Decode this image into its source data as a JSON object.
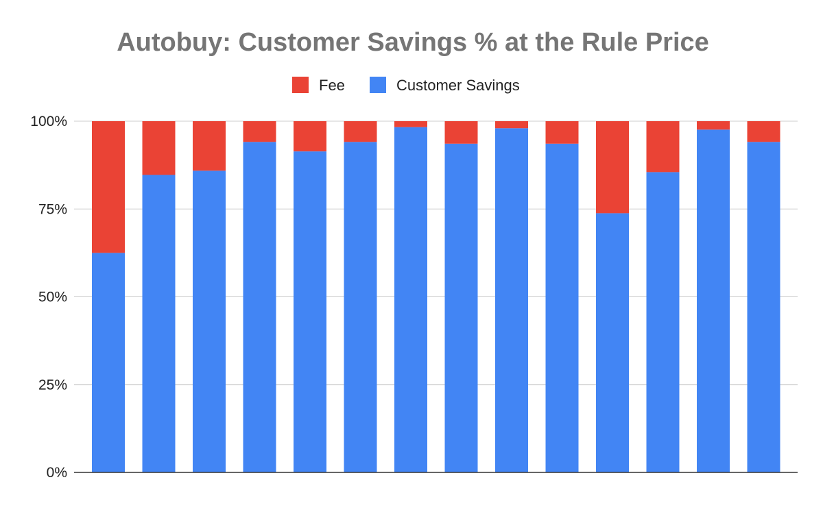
{
  "chart_data": {
    "type": "bar",
    "stacked": true,
    "normalized": true,
    "title": "Autobuy: Customer Savings % at the Rule Price",
    "xlabel": "",
    "ylabel": "",
    "ylim": [
      0,
      100
    ],
    "yticks": [
      "0%",
      "25%",
      "50%",
      "75%",
      "100%"
    ],
    "grid": true,
    "legend_position": "top",
    "categories": [
      "",
      "",
      "",
      "",
      "",
      "",
      "",
      "",
      "",
      "",
      "",
      "",
      "",
      ""
    ],
    "series": [
      {
        "name": "Customer Savings",
        "color": "#4285f4",
        "values": [
          62.5,
          84.7,
          85.9,
          94.1,
          91.4,
          94.1,
          98.3,
          93.6,
          98.0,
          93.6,
          73.8,
          85.5,
          97.6,
          94.1
        ]
      },
      {
        "name": "Fee",
        "color": "#ea4335",
        "values": [
          37.5,
          15.3,
          14.1,
          5.9,
          8.6,
          5.9,
          1.7,
          6.4,
          2.0,
          6.4,
          26.2,
          14.5,
          2.4,
          5.9
        ]
      }
    ],
    "legend_order": [
      "Fee",
      "Customer Savings"
    ]
  }
}
